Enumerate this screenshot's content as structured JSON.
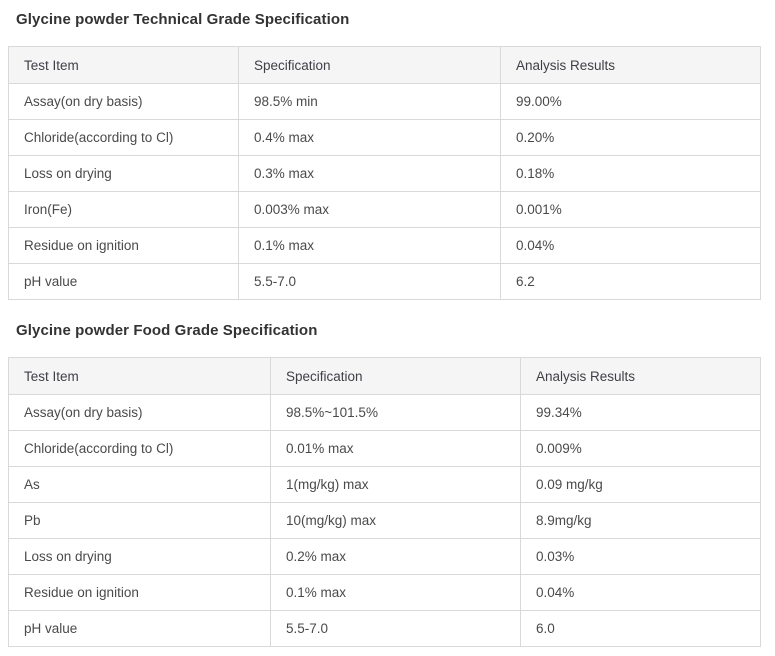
{
  "colors": {
    "page_background": "#ffffff",
    "table_header_background": "#f5f5f6",
    "table_border": "#d9d9d9",
    "title_text": "#333333",
    "cell_text": "#4a4a4a"
  },
  "sections": [
    {
      "title": "Glycine powder Technical Grade Specification",
      "columns": [
        "Test Item",
        "Specification",
        "Analysis Results"
      ],
      "rows": [
        [
          "Assay(on dry basis)",
          "98.5% min",
          "99.00%"
        ],
        [
          "Chloride(according to Cl)",
          "0.4% max",
          "0.20%"
        ],
        [
          "Loss on drying",
          "0.3% max",
          "0.18%"
        ],
        [
          "Iron(Fe)",
          "0.003% max",
          "0.001%"
        ],
        [
          "Residue on ignition",
          "0.1% max",
          "0.04%"
        ],
        [
          "pH value",
          "5.5-7.0",
          "6.2"
        ]
      ]
    },
    {
      "title": "Glycine powder Food Grade Specification",
      "columns": [
        "Test Item",
        "Specification",
        "Analysis Results"
      ],
      "rows": [
        [
          "Assay(on dry basis)",
          "98.5%~101.5%",
          "99.34%"
        ],
        [
          "Chloride(according to Cl)",
          "0.01% max",
          "0.009%"
        ],
        [
          "As",
          "1(mg/kg) max",
          "0.09 mg/kg"
        ],
        [
          "Pb",
          "10(mg/kg) max",
          "8.9mg/kg"
        ],
        [
          "Loss on drying",
          "0.2% max",
          "0.03%"
        ],
        [
          "Residue on ignition",
          "0.1% max",
          "0.04%"
        ],
        [
          "pH value",
          "5.5-7.0",
          "6.0"
        ]
      ]
    }
  ]
}
